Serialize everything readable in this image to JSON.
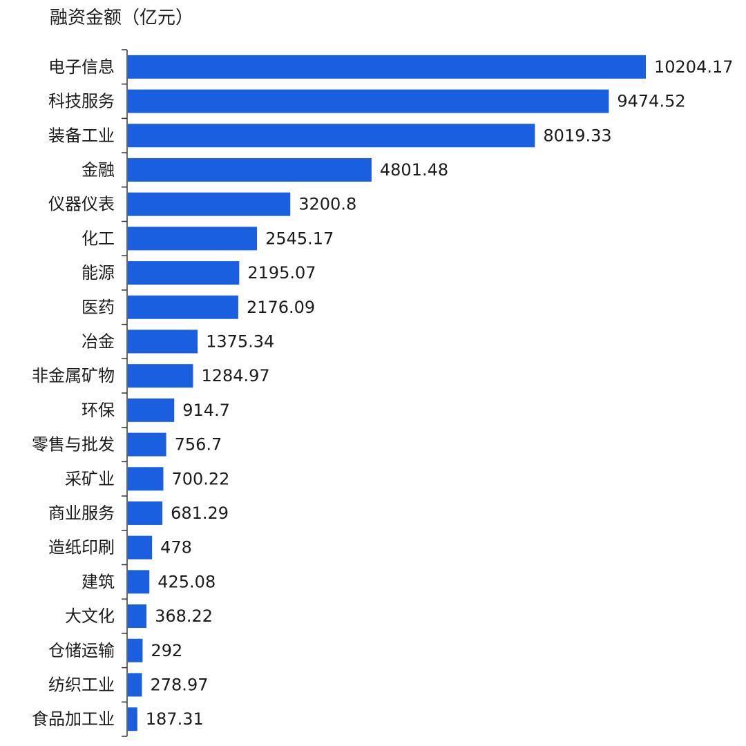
{
  "chart_data": {
    "type": "bar",
    "orientation": "horizontal",
    "title": "融资金额（亿元）",
    "categories": [
      "电子信息",
      "科技服务",
      "装备工业",
      "金融",
      "仪器仪表",
      "化工",
      "能源",
      "医药",
      "冶金",
      "非金属矿物",
      "环保",
      "零售与批发",
      "采矿业",
      "商业服务",
      "造纸印刷",
      "建筑",
      "大文化",
      "仓储运输",
      "纺织工业",
      "食品加工业"
    ],
    "values": [
      10204.17,
      9474.52,
      8019.33,
      4801.48,
      3200.8,
      2545.17,
      2195.07,
      2176.09,
      1375.34,
      1284.97,
      914.7,
      756.7,
      700.22,
      681.29,
      478,
      425.08,
      368.22,
      292,
      278.97,
      187.31
    ],
    "value_labels": [
      "10204.17",
      "9474.52",
      "8019.33",
      "4801.48",
      "3200.8",
      "2545.17",
      "2195.07",
      "2176.09",
      "1375.34",
      "1284.97",
      "914.7",
      "756.7",
      "700.22",
      "681.29",
      "478",
      "425.08",
      "368.22",
      "292",
      "278.97",
      "187.31"
    ],
    "xlim": [
      0,
      10204.17
    ],
    "grid": false,
    "legend": "none",
    "bar_color": "#1a5fe0"
  }
}
